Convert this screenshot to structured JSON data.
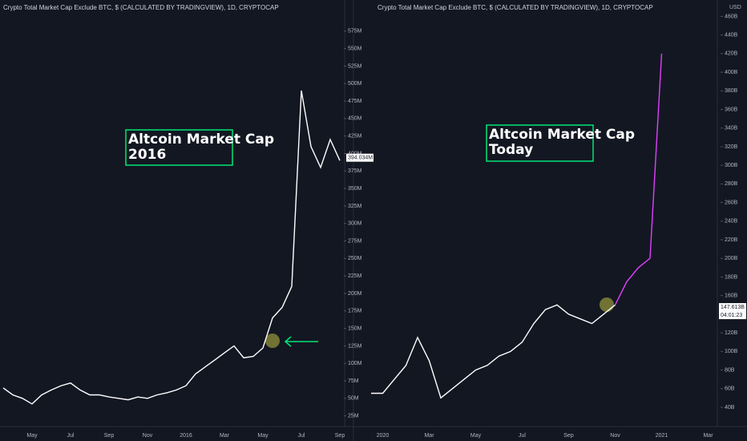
{
  "chart_data": [
    {
      "type": "line",
      "title": "Crypto Total Market Cap Exclude BTC, $ (CALCULATED BY TRADINGVIEW), 1D, CRYPTOCAP",
      "annotation": [
        "Altcoin Market Cap",
        "2016"
      ],
      "categories": [
        null,
        null,
        null,
        "May",
        null,
        null,
        null,
        "Jul",
        null,
        null,
        null,
        "Sep",
        null,
        null,
        null,
        "Nov",
        null,
        null,
        null,
        "2016",
        null,
        null,
        null,
        "Mar",
        null,
        null,
        null,
        "May",
        null,
        null,
        null,
        "Jul",
        null,
        null,
        null,
        "Sep"
      ],
      "series": [
        {
          "color": "#ffffff",
          "values": [
            65,
            55,
            50,
            42,
            55,
            62,
            68,
            72,
            62,
            55,
            55,
            52,
            50,
            48,
            52,
            50,
            55,
            58,
            62,
            68,
            85,
            95,
            105,
            115,
            125,
            108,
            110,
            122,
            165,
            180,
            210,
            490,
            410,
            380,
            420,
            390
          ]
        }
      ],
      "ylim": [
        12,
        608
      ],
      "yticks": [
        {
          "value": 25,
          "label": "25M"
        },
        {
          "value": 50,
          "label": "50M"
        },
        {
          "value": 75,
          "label": "75M"
        },
        {
          "value": 100,
          "label": "100M"
        },
        {
          "value": 125,
          "label": "125M"
        },
        {
          "value": 150,
          "label": "150M"
        },
        {
          "value": 175,
          "label": "175M"
        },
        {
          "value": 200,
          "label": "200M"
        },
        {
          "value": 225,
          "label": "225M"
        },
        {
          "value": 250,
          "label": "250M"
        },
        {
          "value": 275,
          "label": "275M"
        },
        {
          "value": 300,
          "label": "300M"
        },
        {
          "value": 325,
          "label": "325M"
        },
        {
          "value": 350,
          "label": "350M"
        },
        {
          "value": 375,
          "label": "375M"
        },
        {
          "value": 400,
          "label": "400M"
        },
        {
          "value": 425,
          "label": "425M"
        },
        {
          "value": 450,
          "label": "450M"
        },
        {
          "value": 475,
          "label": "475M"
        },
        {
          "value": 500,
          "label": "500M"
        },
        {
          "value": 525,
          "label": "525M"
        },
        {
          "value": 550,
          "label": "550M"
        },
        {
          "value": 575,
          "label": "575M"
        }
      ],
      "price_label": {
        "value": 394.034,
        "label": "394.034M"
      }
    },
    {
      "type": "line",
      "title": "Crypto Total Market Cap Exclude BTC, $ (CALCULATED BY TRADINGVIEW), 1D, CRYPTOCAP",
      "annotation": [
        "Altcoin Market Cap",
        "Today"
      ],
      "axis_unit": "USD",
      "categories": [
        null,
        "2020",
        null,
        null,
        null,
        "Mar",
        null,
        null,
        null,
        "May",
        null,
        null,
        null,
        "Jul",
        null,
        null,
        null,
        "Sep",
        null,
        null,
        null,
        "Nov",
        null,
        null,
        null,
        "2021",
        null,
        null,
        null,
        "Mar"
      ],
      "series": [
        {
          "color": "#ffffff",
          "values": [
            55,
            55,
            70,
            85,
            115,
            90,
            50,
            60,
            70,
            80,
            85,
            95,
            100,
            110,
            130,
            145,
            150,
            140,
            135,
            130,
            140,
            150,
            null,
            null,
            null,
            null,
            null,
            null,
            null,
            null
          ]
        },
        {
          "color": "#e040fb",
          "values": [
            null,
            null,
            null,
            null,
            null,
            null,
            null,
            null,
            null,
            null,
            null,
            null,
            null,
            null,
            null,
            null,
            null,
            null,
            null,
            null,
            null,
            150,
            175,
            190,
            200,
            420,
            null,
            null,
            null,
            null
          ]
        }
      ],
      "ylim": [
        21,
        469
      ],
      "yticks": [
        {
          "value": 40,
          "label": "40B"
        },
        {
          "value": 60,
          "label": "60B"
        },
        {
          "value": 80,
          "label": "80B"
        },
        {
          "value": 100,
          "label": "100B"
        },
        {
          "value": 120,
          "label": "120B"
        },
        {
          "value": 140,
          "label": "140B"
        },
        {
          "value": 160,
          "label": "160B"
        },
        {
          "value": 180,
          "label": "180B"
        },
        {
          "value": 200,
          "label": "200B"
        },
        {
          "value": 220,
          "label": "220B"
        },
        {
          "value": 240,
          "label": "240B"
        },
        {
          "value": 260,
          "label": "260B"
        },
        {
          "value": 280,
          "label": "280B"
        },
        {
          "value": 300,
          "label": "300B"
        },
        {
          "value": 320,
          "label": "320B"
        },
        {
          "value": 340,
          "label": "340B"
        },
        {
          "value": 360,
          "label": "360B"
        },
        {
          "value": 380,
          "label": "380B"
        },
        {
          "value": 400,
          "label": "400B"
        },
        {
          "value": 420,
          "label": "420B"
        },
        {
          "value": 440,
          "label": "440B"
        },
        {
          "value": 460,
          "label": "460B"
        }
      ],
      "price_label": {
        "value": 147.613,
        "label": "147.613B"
      },
      "countdown": "04:01:23"
    }
  ]
}
